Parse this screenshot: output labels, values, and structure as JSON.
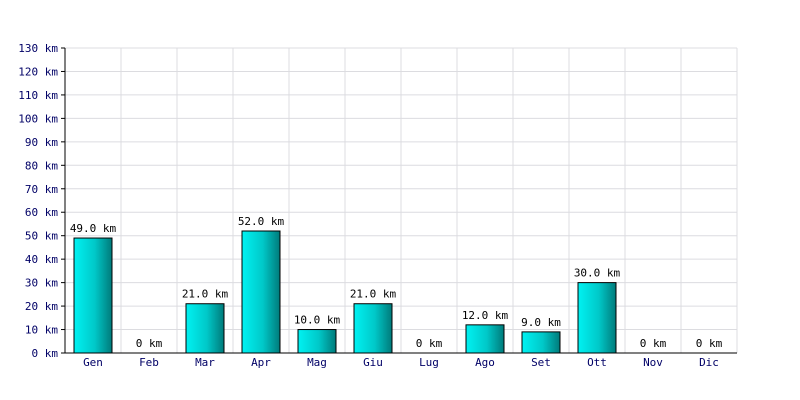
{
  "chart_data": {
    "type": "bar",
    "title": "",
    "xlabel": "",
    "ylabel": "",
    "unit": "km",
    "categories": [
      "Gen",
      "Feb",
      "Mar",
      "Apr",
      "Mag",
      "Giu",
      "Lug",
      "Ago",
      "Set",
      "Ott",
      "Nov",
      "Dic"
    ],
    "values": [
      49.0,
      0,
      21.0,
      52.0,
      10.0,
      21.0,
      0,
      12.0,
      9.0,
      30.0,
      0,
      0
    ],
    "data_labels": [
      "49.0 km",
      "0 km",
      "21.0 km",
      "52.0 km",
      "10.0 km",
      "21.0 km",
      "0 km",
      "12.0 km",
      "9.0 km",
      "30.0 km",
      "0 km",
      "0 km"
    ],
    "y_ticks": [
      "0 km",
      "10 km",
      "20 km",
      "30 km",
      "40 km",
      "50 km",
      "60 km",
      "70 km",
      "80 km",
      "90 km",
      "100 km",
      "110 km",
      "120 km",
      "130 km"
    ],
    "ylim": [
      0,
      130
    ],
    "grid": true,
    "bar_color": "#00d0d0"
  }
}
